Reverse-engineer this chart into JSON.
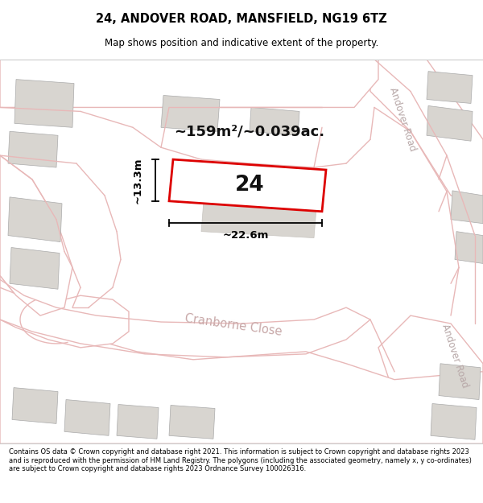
{
  "title": "24, ANDOVER ROAD, MANSFIELD, NG19 6TZ",
  "subtitle": "Map shows position and indicative extent of the property.",
  "footer": "Contains OS data © Crown copyright and database right 2021. This information is subject to Crown copyright and database rights 2023 and is reproduced with the permission of HM Land Registry. The polygons (including the associated geometry, namely x, y co-ordinates) are subject to Crown copyright and database rights 2023 Ordnance Survey 100026316.",
  "area_label": "~159m²/~0.039ac.",
  "width_label": "~22.6m",
  "height_label": "~13.3m",
  "number_label": "24",
  "bg_color": "#f2f0ed",
  "road_fill": "#ffffff",
  "plot_outline_color": "#dd0000",
  "building_fill": "#d8d5d0",
  "pink": "#e8b8b8",
  "andover_road_label": "Andover Road",
  "cranborne_label": "Cranborne Close"
}
